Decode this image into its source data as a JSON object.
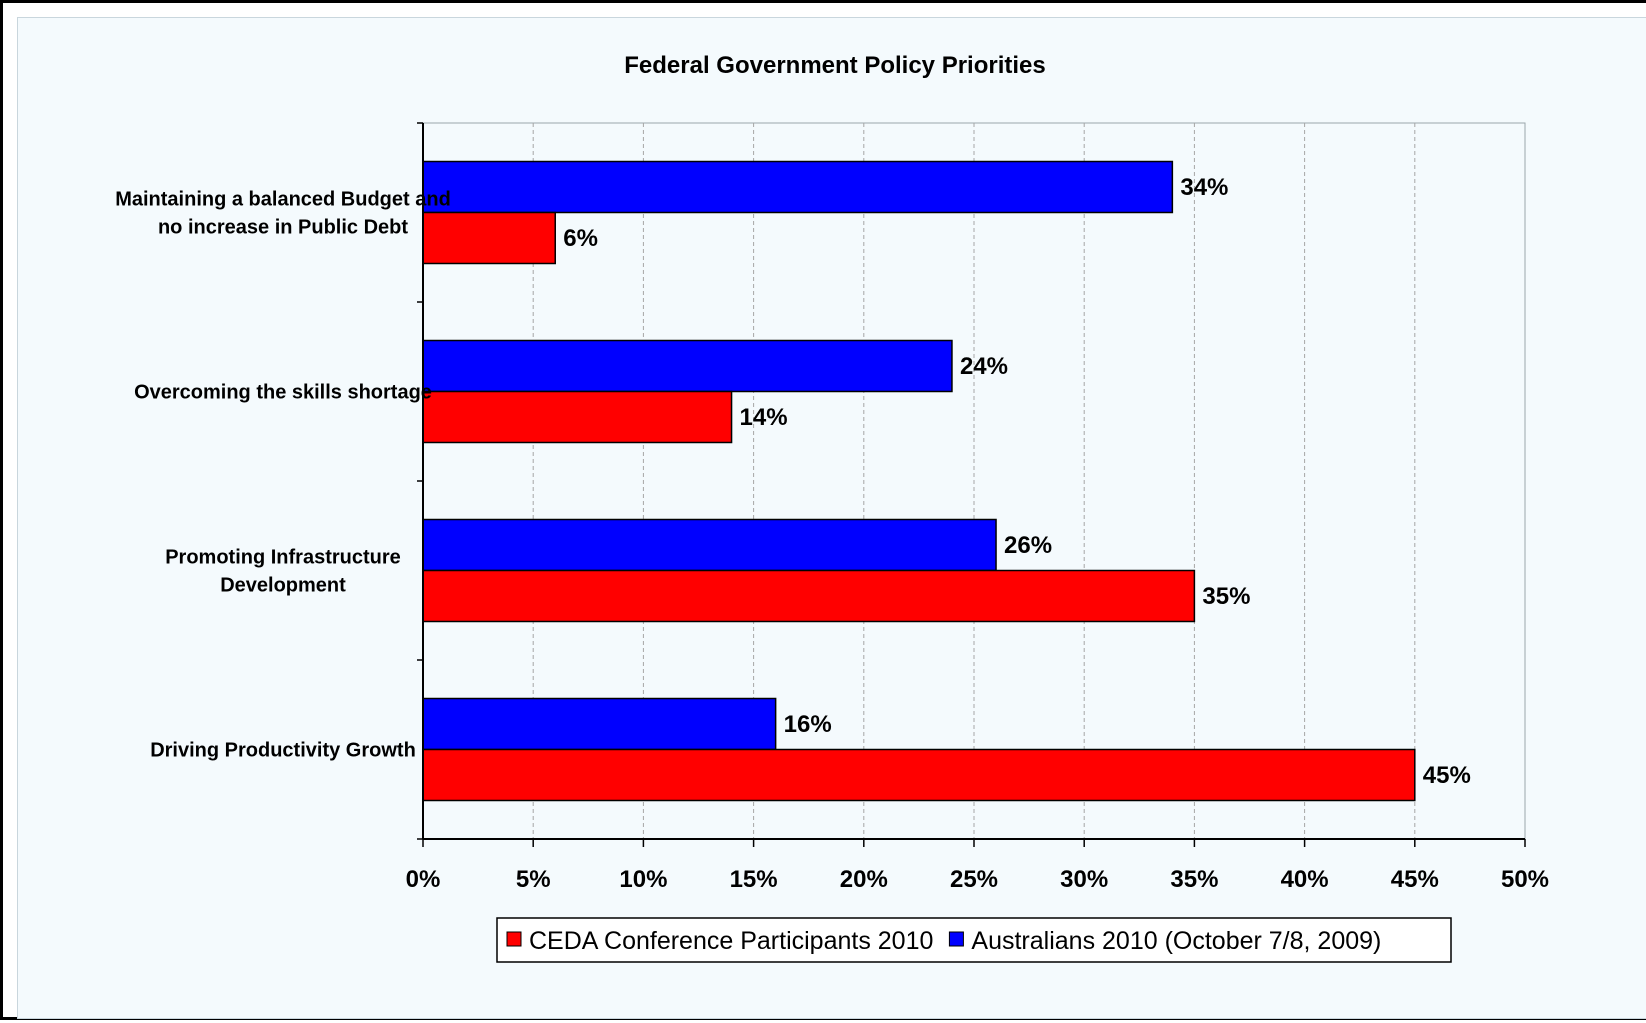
{
  "chart_data": {
    "type": "bar",
    "orientation": "horizontal",
    "title": "Federal Government Policy Priorities",
    "categories": [
      [
        "Maintaining a balanced Budget and",
        "no increase in Public Debt"
      ],
      [
        "Overcoming the skills shortage"
      ],
      [
        "Promoting Infrastructure",
        "Development"
      ],
      [
        "Driving Productivity Growth"
      ]
    ],
    "series": [
      {
        "name": "Australians 2010 (October 7/8, 2009)",
        "color": "#0000ff",
        "values": [
          34,
          24,
          26,
          16
        ]
      },
      {
        "name": "CEDA Conference Participants 2010",
        "color": "#ff0000",
        "values": [
          6,
          14,
          35,
          45
        ]
      }
    ],
    "data_label_suffix": "%",
    "xlim": [
      0,
      50
    ],
    "x_ticks": [
      "0%",
      "5%",
      "10%",
      "15%",
      "20%",
      "25%",
      "30%",
      "35%",
      "40%",
      "45%",
      "50%"
    ],
    "grid": "vertical dashed",
    "legend_order": [
      "CEDA Conference Participants 2010",
      "Australians 2010 (October 7/8, 2009)"
    ],
    "legend_position": "bottom"
  }
}
